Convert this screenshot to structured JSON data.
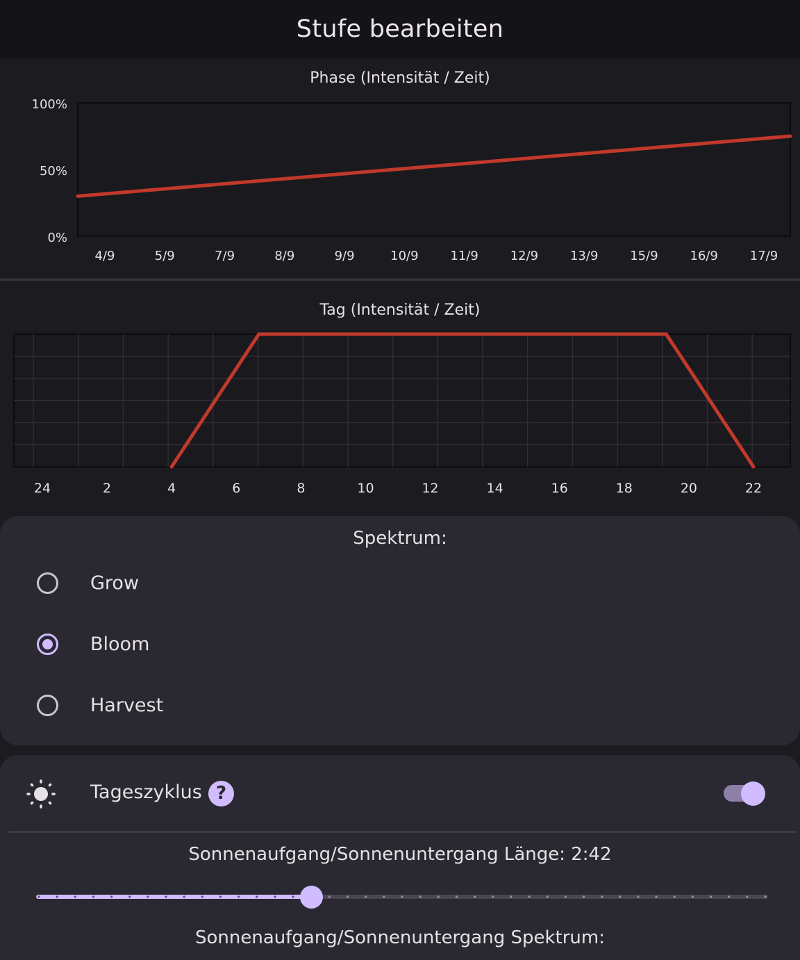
{
  "appbar": {
    "title": "Stufe bearbeiten"
  },
  "phase_chart": {
    "title": "Phase (Intensität / Zeit)",
    "chart_data": {
      "type": "line",
      "title": "Phase (Intensität / Zeit)",
      "x_tick_labels": [
        "4/9",
        "5/9",
        "7/9",
        "8/9",
        "9/9",
        "10/9",
        "11/9",
        "12/9",
        "13/9",
        "15/9",
        "16/9",
        "17/9"
      ],
      "y_tick_labels": [
        "100%",
        "50%",
        "0%"
      ],
      "ylim": [
        0,
        100
      ],
      "series": [
        {
          "x": [
            0,
            1
          ],
          "values": [
            30,
            75
          ]
        }
      ],
      "grid": false,
      "line_color": "#c0392b"
    }
  },
  "day_chart": {
    "title": "Tag (Intensität / Zeit)",
    "chart_data": {
      "type": "line",
      "title": "Tag (Intensität / Zeit)",
      "x_tick_labels": [
        "24",
        "2",
        "4",
        "6",
        "8",
        "10",
        "12",
        "14",
        "16",
        "18",
        "20",
        "22"
      ],
      "xlim": [
        -1,
        23
      ],
      "ylim": [
        0,
        100
      ],
      "series": [
        {
          "x": [
            4,
            6.7,
            19.3,
            22
          ],
          "values": [
            0,
            100,
            100,
            0
          ]
        }
      ],
      "grid": true,
      "line_color": "#c0392b"
    }
  },
  "spectrum": {
    "title": "Spektrum:",
    "options": [
      {
        "label": "Grow",
        "checked": false
      },
      {
        "label": "Bloom",
        "checked": true
      },
      {
        "label": "Harvest",
        "checked": false
      }
    ]
  },
  "daycycle": {
    "label": "Tageszyklus",
    "icon": "sun-icon",
    "help": "?",
    "enabled": true,
    "accent": "#d0bcff"
  },
  "sunrise": {
    "length_label": "Sonnenaufgang/Sonnenuntergang Länge: 2:42",
    "slider_value": 0.376,
    "spectrum_label": "Sonnenaufgang/Sonnenuntergang Spektrum:"
  }
}
